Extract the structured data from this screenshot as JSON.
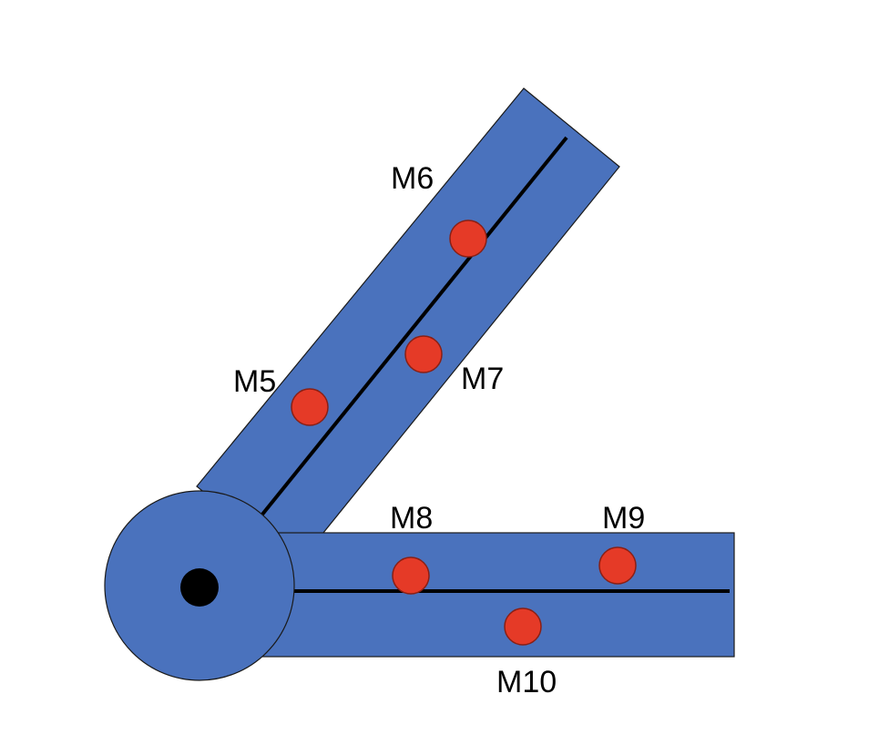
{
  "colors": {
    "segment": "#4a72bd",
    "marker": "#e53a27",
    "axis": "#000000",
    "pivot": "#000000"
  },
  "markers": [
    {
      "id": "m5",
      "label": "M5"
    },
    {
      "id": "m6",
      "label": "M6"
    },
    {
      "id": "m7",
      "label": "M7"
    },
    {
      "id": "m8",
      "label": "M8"
    },
    {
      "id": "m9",
      "label": "M9"
    },
    {
      "id": "m10",
      "label": "M10"
    }
  ]
}
